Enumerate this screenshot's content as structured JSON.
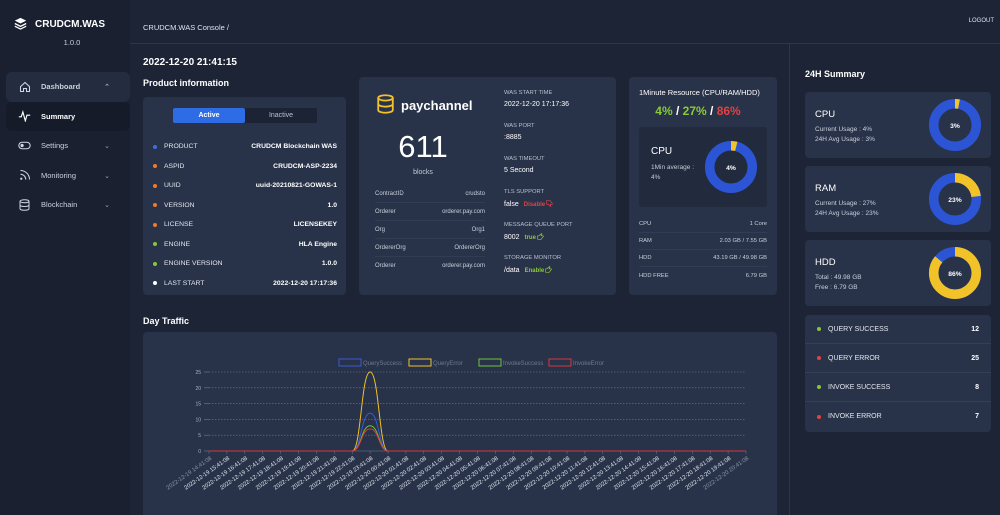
{
  "app": {
    "name": "CRUDCM.WAS",
    "version": "1.0.0"
  },
  "sidebar": {
    "items": [
      {
        "label": "Dashboard",
        "icon": "home-icon"
      },
      {
        "label": "Summary",
        "icon": "pulse-icon"
      },
      {
        "label": "Settings",
        "icon": "toggle-icon"
      },
      {
        "label": "Monitoring",
        "icon": "signal-icon"
      },
      {
        "label": "Blockchain",
        "icon": "database-icon"
      }
    ]
  },
  "header": {
    "breadcrumb": "CRUDCM.WAS Console /",
    "logout": "LOGOUT"
  },
  "datetime": "2022-12-20 21:41:15",
  "product": {
    "title": "Product information",
    "tabs": [
      "Active",
      "Inactive"
    ],
    "rows": [
      {
        "k": "PRODUCT",
        "v": "CRUDCM Blockchain WAS",
        "color": "#3d6fe0"
      },
      {
        "k": "ASPID",
        "v": "CRUDCM-ASP-2234",
        "color": "#f07a2a"
      },
      {
        "k": "UUID",
        "v": "uuid-20210821-GOWAS-1",
        "color": "#f07a2a"
      },
      {
        "k": "VERSION",
        "v": "1.0",
        "color": "#f07a2a"
      },
      {
        "k": "LICENSE",
        "v": "LICENSEKEY",
        "color": "#f07a2a"
      },
      {
        "k": "ENGINE",
        "v": "HLA Engine",
        "color": "#86c63a"
      },
      {
        "k": "ENGINE VERSION",
        "v": "1.0.0",
        "color": "#86c63a"
      },
      {
        "k": "LAST START",
        "v": "2022-12-20 17:17:36",
        "color": "#ffffff"
      }
    ]
  },
  "channel": {
    "name": "paychannel",
    "blocks": "611",
    "blocks_label": "blocks",
    "kv": [
      {
        "k": "ContractID",
        "v": "crudsto"
      },
      {
        "k": "Orderer",
        "v": "orderer.pay.com"
      },
      {
        "k": "Org",
        "v": "Org1"
      },
      {
        "k": "OrdererOrg",
        "v": "OrdererOrg"
      },
      {
        "k": "Orderer",
        "v": "orderer.pay.com"
      }
    ],
    "was": {
      "start_time_label": "WAS START TIME",
      "start_time": "2022-12-20 17:17:36",
      "port_label": "WAS PORT",
      "port": ":8885",
      "timeout_label": "WAS TIMEOUT",
      "timeout": "5 Second",
      "tls_label": "TLS SUPPORT",
      "tls_value": "false",
      "tls_badge": "Disable",
      "mq_label": "MESSAGE QUEUE PORT",
      "mq_value": "8002",
      "mq_badge": "true",
      "storage_label": "STORAGE MONITOR",
      "storage_value": "/data",
      "storage_badge": "Enable"
    }
  },
  "resource": {
    "title": "1Minute Resource (CPU/RAM/HDD)",
    "cpu_pct": "4%",
    "ram_pct": "27%",
    "hdd_pct": "86%",
    "sep": " / ",
    "cpu_label": "CPU",
    "cpu_avg_label": "1Min average :",
    "cpu_avg": "4%",
    "cpu_donut_value": 4,
    "cpu_donut_text": "4%",
    "rows": [
      {
        "k": "CPU",
        "v": "1 Core"
      },
      {
        "k": "RAM",
        "v": "2.03 GB / 7.55 GB"
      },
      {
        "k": "HDD",
        "v": "43.19 GB / 49.98 GB"
      },
      {
        "k": "HDD FREE",
        "v": "6.79 GB"
      }
    ]
  },
  "summary": {
    "title": "24H Summary",
    "cards": [
      {
        "name": "CPU",
        "l1": "Current Usage : 4%",
        "l2": "24H Avg Usage : 3%",
        "value": 3,
        "text": "3%"
      },
      {
        "name": "RAM",
        "l1": "Current Usage : 27%",
        "l2": "24H Avg Usage : 23%",
        "value": 23,
        "text": "23%"
      },
      {
        "name": "HDD",
        "l1": "Total : 49.98 GB",
        "l2": "Free : 6.79 GB",
        "value": 86,
        "text": "86%"
      }
    ],
    "stats": [
      {
        "k": "QUERY SUCCESS",
        "v": "12",
        "color": "#86c63a"
      },
      {
        "k": "QUERY ERROR",
        "v": "25",
        "color": "#e04343"
      },
      {
        "k": "INVOKE SUCCESS",
        "v": "8",
        "color": "#86c63a"
      },
      {
        "k": "INVOKE ERROR",
        "v": "7",
        "color": "#e04343"
      }
    ]
  },
  "colors": {
    "accent": "#2d6ce4",
    "blue": "#2c55d6",
    "yellow": "#f2c229",
    "green": "#5fc23a",
    "red": "#e04343",
    "orange": "#f07a2a"
  },
  "traffic_title": "Day Traffic",
  "chart_data": {
    "type": "line",
    "title": "",
    "legend_position": "top-center",
    "ylim": [
      0,
      25
    ],
    "yticks": [
      "0",
      "5",
      "10",
      "15",
      "20",
      "25"
    ],
    "categories": [
      "2022-12-19 14:41:08",
      "2022-12-19 15:41:08",
      "2022-12-19 16:41:08",
      "2022-12-19 17:41:08",
      "2022-12-19 18:41:08",
      "2022-12-19 19:41:08",
      "2022-12-19 20:41:08",
      "2022-12-19 21:41:08",
      "2022-12-19 22:41:08",
      "2022-12-19 23:41:08",
      "2022-12-20 00:41:08",
      "2022-12-20 01:41:08",
      "2022-12-20 02:41:08",
      "2022-12-20 03:41:08",
      "2022-12-20 04:41:08",
      "2022-12-20 05:41:08",
      "2022-12-20 06:41:08",
      "2022-12-20 07:41:08",
      "2022-12-20 08:41:08",
      "2022-12-20 09:41:08",
      "2022-12-20 10:41:08",
      "2022-12-20 11:41:08",
      "2022-12-20 12:41:08",
      "2022-12-20 13:41:08",
      "2022-12-20 14:41:08",
      "2022-12-20 15:41:08",
      "2022-12-20 16:41:08",
      "2022-12-20 17:41:08",
      "2022-12-20 18:41:08",
      "2022-12-20 19:41:08",
      "2022-12-20 20:41:08"
    ],
    "series": [
      {
        "name": "QuerySuccess",
        "color": "#3b5bd9",
        "values": [
          0,
          0,
          0,
          0,
          0,
          0,
          0,
          0,
          0,
          12,
          0,
          0,
          0,
          0,
          0,
          0,
          0,
          0,
          0,
          0,
          0,
          0,
          0,
          0,
          0,
          0,
          0,
          0,
          0,
          0,
          0
        ]
      },
      {
        "name": "QueryError",
        "color": "#f2c229",
        "values": [
          0,
          0,
          0,
          0,
          0,
          0,
          0,
          0,
          0,
          25,
          0,
          0,
          0,
          0,
          0,
          0,
          0,
          0,
          0,
          0,
          0,
          0,
          0,
          0,
          0,
          0,
          0,
          0,
          0,
          0,
          0
        ]
      },
      {
        "name": "InvokeSuccess",
        "color": "#6fc43a",
        "values": [
          0,
          0,
          0,
          0,
          0,
          0,
          0,
          0,
          0,
          8,
          0,
          0,
          0,
          0,
          0,
          0,
          0,
          0,
          0,
          0,
          0,
          0,
          0,
          0,
          0,
          0,
          0,
          0,
          0,
          0,
          0
        ]
      },
      {
        "name": "InvokeError",
        "color": "#d63b3b",
        "values": [
          0,
          0,
          0,
          0,
          0,
          0,
          0,
          0,
          0,
          7,
          0,
          0,
          0,
          0,
          0,
          0,
          0,
          0,
          0,
          0,
          0,
          0,
          0,
          0,
          0,
          0,
          0,
          0,
          0,
          0,
          0
        ]
      }
    ]
  }
}
